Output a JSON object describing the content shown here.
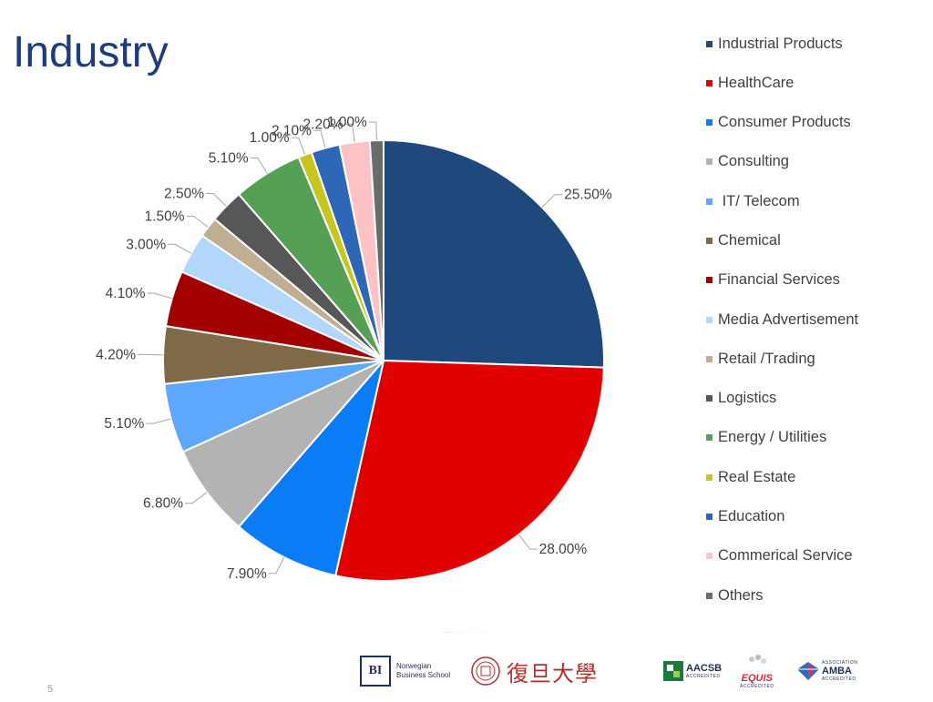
{
  "title": "Industry",
  "page_number": "5",
  "chart_data": {
    "type": "pie",
    "categories": [
      "Industrial Products",
      "HealthCare",
      "Consumer Products",
      "Consulting",
      " IT/ Telecom",
      "Chemical",
      "Financial Services",
      "Media Advertisement",
      "Retail /Trading",
      "Logistics",
      "Energy / Utilities",
      "Real Estate",
      "Education",
      "Commerical Service",
      "Others"
    ],
    "values": [
      25.5,
      28.0,
      7.9,
      6.8,
      5.1,
      4.2,
      4.1,
      3.0,
      1.5,
      2.5,
      5.1,
      1.0,
      2.1,
      2.2,
      1.0
    ],
    "labels": [
      "25.50%",
      "28.00%",
      "7.90%",
      "6.80%",
      "5.10%",
      "4.20%",
      "4.10%",
      "3.00%",
      "1.50%",
      "2.50%",
      "5.10%",
      "1.00%",
      "2.10%",
      "2.20%",
      "1.00%"
    ],
    "colors": [
      "#1f497d",
      "#e00000",
      "#0a7cf5",
      "#b3b3b3",
      "#5ea7ff",
      "#7f6a48",
      "#a30000",
      "#b3d7fb",
      "#bfae91",
      "#575757",
      "#56a056",
      "#c6c622",
      "#2e66b8",
      "#fdc1c6",
      "#6b6b6b"
    ],
    "legend_position": "right"
  },
  "footer": {
    "bi_mark": "BI",
    "bi_name_line1": "Norwegian",
    "bi_name_line2": "Business School",
    "fudan_text": "復旦大學",
    "aacsb": "AACSB",
    "aacsb_sub": "ACCREDITED",
    "equis": "EQUIS",
    "equis_sub": "ACCREDITED",
    "amba": "AMBA",
    "amba_sub": "ACCREDITED",
    "amba_top": "ASSOCIATION"
  }
}
